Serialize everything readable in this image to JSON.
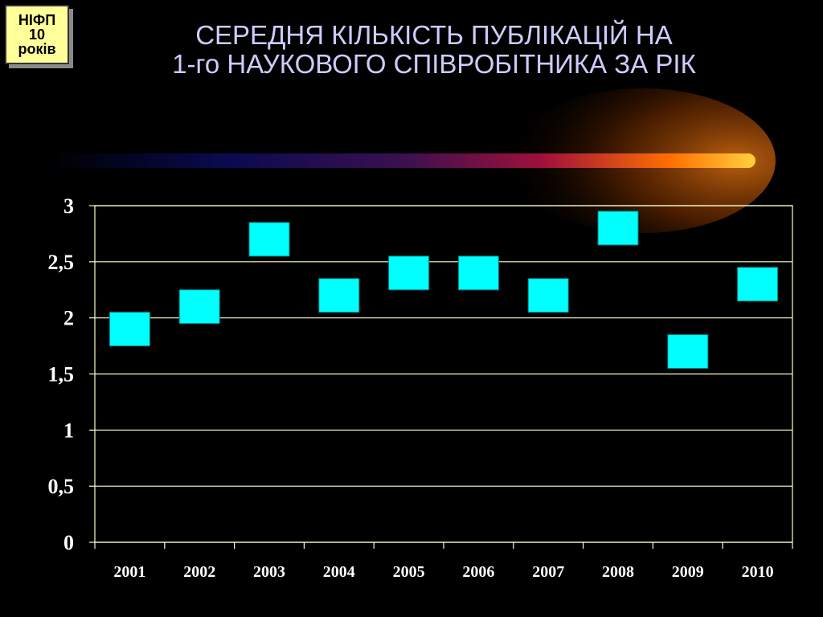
{
  "badge": {
    "lines": [
      "НІФП",
      "10",
      "років"
    ]
  },
  "title": {
    "line1": "СЕРЕДНЯ КІЛЬКІСТЬ ПУБЛІКАЦІЙ НА",
    "line2": "1-го НАУКОВОГО СПІВРОБІТНИКА ЗА РІК"
  },
  "colors": {
    "background": "#000000",
    "title": "#ccccff",
    "badge": "#ffff99",
    "marker": "#00ffff",
    "axis": "#ffffcc",
    "tick_label": "#ffffff"
  },
  "chart_data": {
    "type": "scatter",
    "categories": [
      "2001",
      "2002",
      "2003",
      "2004",
      "2005",
      "2006",
      "2007",
      "2008",
      "2009",
      "2010"
    ],
    "values": [
      1.9,
      2.1,
      2.7,
      2.2,
      2.4,
      2.4,
      2.2,
      2.8,
      1.7,
      2.3
    ],
    "ylim": [
      0,
      3
    ],
    "yticks": [
      "0",
      "0,5",
      "1",
      "1,5",
      "2",
      "2,5",
      "3"
    ],
    "ytick_values": [
      0,
      0.5,
      1,
      1.5,
      2,
      2.5,
      3
    ],
    "grid": true,
    "marker": "square"
  }
}
